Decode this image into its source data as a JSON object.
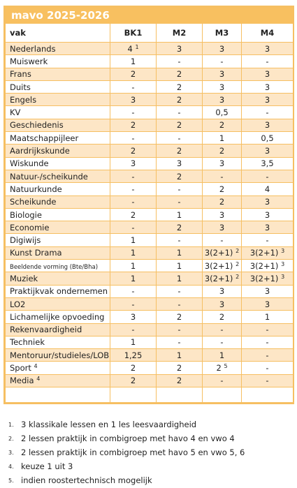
{
  "table": {
    "title": "mavo   2025-2026",
    "header": [
      "vak",
      "BK1",
      "M2",
      "M3",
      "M4"
    ],
    "rows": [
      {
        "vak": "Nederlands",
        "cells": [
          {
            "text": "4",
            "sup": "1"
          },
          "3",
          "3",
          "3"
        ]
      },
      {
        "vak": "Muiswerk",
        "cells": [
          "1",
          "-",
          "-",
          "-"
        ]
      },
      {
        "vak": "Frans",
        "cells": [
          "2",
          "2",
          "3",
          "3"
        ]
      },
      {
        "vak": "Duits",
        "cells": [
          "-",
          "2",
          "3",
          "3"
        ]
      },
      {
        "vak": "Engels",
        "cells": [
          "3",
          "2",
          "3",
          "3"
        ]
      },
      {
        "vak": "KV",
        "cells": [
          "-",
          "-",
          "0,5",
          "-"
        ]
      },
      {
        "vak": "Geschiedenis",
        "cells": [
          "2",
          "2",
          "2",
          "3"
        ]
      },
      {
        "vak": "Maatschappijleer",
        "cells": [
          "-",
          "-",
          "1",
          "0,5"
        ]
      },
      {
        "vak": "Aardrijkskunde",
        "cells": [
          "2",
          "2",
          "2",
          "3"
        ]
      },
      {
        "vak": "Wiskunde",
        "cells": [
          "3",
          "3",
          "3",
          "3,5"
        ]
      },
      {
        "vak": "Natuur-/scheikunde",
        "cells": [
          "-",
          "2",
          "-",
          "-"
        ]
      },
      {
        "vak": "Natuurkunde",
        "cells": [
          "-",
          "-",
          "2",
          "4"
        ]
      },
      {
        "vak": "Scheikunde",
        "cells": [
          "-",
          "-",
          "2",
          "3"
        ]
      },
      {
        "vak": "Biologie",
        "cells": [
          "2",
          "1",
          "3",
          "3"
        ]
      },
      {
        "vak": "Economie",
        "cells": [
          "-",
          "2",
          "3",
          "3"
        ]
      },
      {
        "vak": "Digiwijs",
        "cells": [
          "1",
          "-",
          "-",
          "-"
        ]
      },
      {
        "vak": "Kunst Drama",
        "cells": [
          "1",
          "1",
          {
            "text": "3(2+1)",
            "sup": "2"
          },
          {
            "text": "3(2+1)",
            "sup": "3"
          }
        ]
      },
      {
        "vak": "Beeldende vorming  (Bte/Bha)",
        "small": true,
        "cells": [
          "1",
          "1",
          {
            "text": "3(2+1)",
            "sup": "2"
          },
          {
            "text": "3(2+1)",
            "sup": "3"
          }
        ]
      },
      {
        "vak": "Muziek",
        "cells": [
          "1",
          "1",
          {
            "text": "3(2+1)",
            "sup": "2"
          },
          {
            "text": "3(2+1)",
            "sup": "3"
          }
        ]
      },
      {
        "vak": "Praktijkvak ondernemen",
        "cells": [
          "-",
          "-",
          "3",
          "3"
        ]
      },
      {
        "vak": "LO2",
        "cells": [
          "-",
          "-",
          "3",
          "3"
        ]
      },
      {
        "vak": "Lichamelijke opvoeding",
        "cells": [
          "3",
          "2",
          "2",
          "1"
        ]
      },
      {
        "vak": "Rekenvaardigheid",
        "cells": [
          "-",
          "-",
          "-",
          "-"
        ]
      },
      {
        "vak": "Techniek",
        "cells": [
          "1",
          "-",
          "-",
          "-"
        ]
      },
      {
        "vak": "Mentoruur/studieles/LOB",
        "cells": [
          "1,25",
          "1",
          "1",
          "-"
        ]
      },
      {
        "vak": "Sport",
        "vak_sup": "4",
        "cells": [
          "2",
          "2",
          {
            "text": "2",
            "sup": "5"
          },
          "-"
        ]
      },
      {
        "vak": "Media",
        "vak_sup": "4",
        "cells": [
          "2",
          "2",
          "-",
          "-"
        ]
      }
    ]
  },
  "footnotes": [
    {
      "num": "1.",
      "text": "3 klassikale lessen en 1 les leesvaardigheid"
    },
    {
      "num": "2.",
      "text": "2 lessen praktijk in combigroep met havo 4 en vwo 4"
    },
    {
      "num": "3.",
      "text": "2 lessen praktijk in combigroep met havo 5 en vwo 5, 6"
    },
    {
      "num": "4.",
      "text": "keuze 1 uit 3"
    },
    {
      "num": "5.",
      "text": "indien roostertechnisch mogelijk"
    }
  ]
}
